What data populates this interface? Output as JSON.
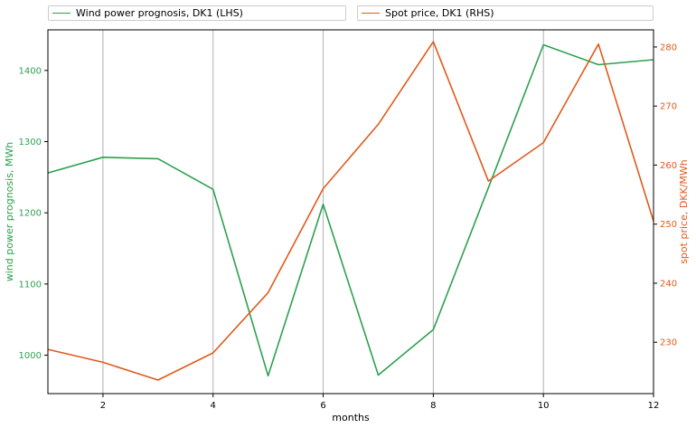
{
  "chart_data": {
    "type": "line",
    "x": [
      1,
      2,
      3,
      4,
      5,
      6,
      7,
      8,
      9,
      10,
      11,
      12
    ],
    "xlabel": "months",
    "xlim": [
      1,
      12
    ],
    "xticks": [
      2,
      4,
      6,
      8,
      10,
      12
    ],
    "grid": "vertical",
    "legend_placement": "top",
    "series": [
      {
        "name": "Wind power prognosis, DK1 (LHS)",
        "axis": "left",
        "color": "#2ca050",
        "values": [
          1256,
          1278,
          1276,
          1233,
          971,
          1212,
          972,
          1036,
          1235,
          1436,
          1408,
          1415
        ]
      },
      {
        "name": "Spot price, DK1 (RHS)",
        "axis": "right",
        "color": "#e05a1c",
        "values": [
          228.8,
          226.6,
          223.6,
          228.2,
          238.4,
          256.0,
          266.9,
          280.9,
          257.3,
          263.8,
          280.5,
          250.5
        ]
      }
    ],
    "y_left": {
      "label": "wind power prognosis, MWh",
      "ylim": [
        946,
        1457
      ],
      "ticks": [
        1000,
        1100,
        1200,
        1300,
        1400
      ],
      "color": "#2ca050"
    },
    "y_right": {
      "label": "spot price, DKK/MWh",
      "ylim": [
        221.3,
        282.9
      ],
      "ticks": [
        230,
        240,
        250,
        260,
        270,
        280
      ],
      "color": "#e05a1c"
    }
  }
}
